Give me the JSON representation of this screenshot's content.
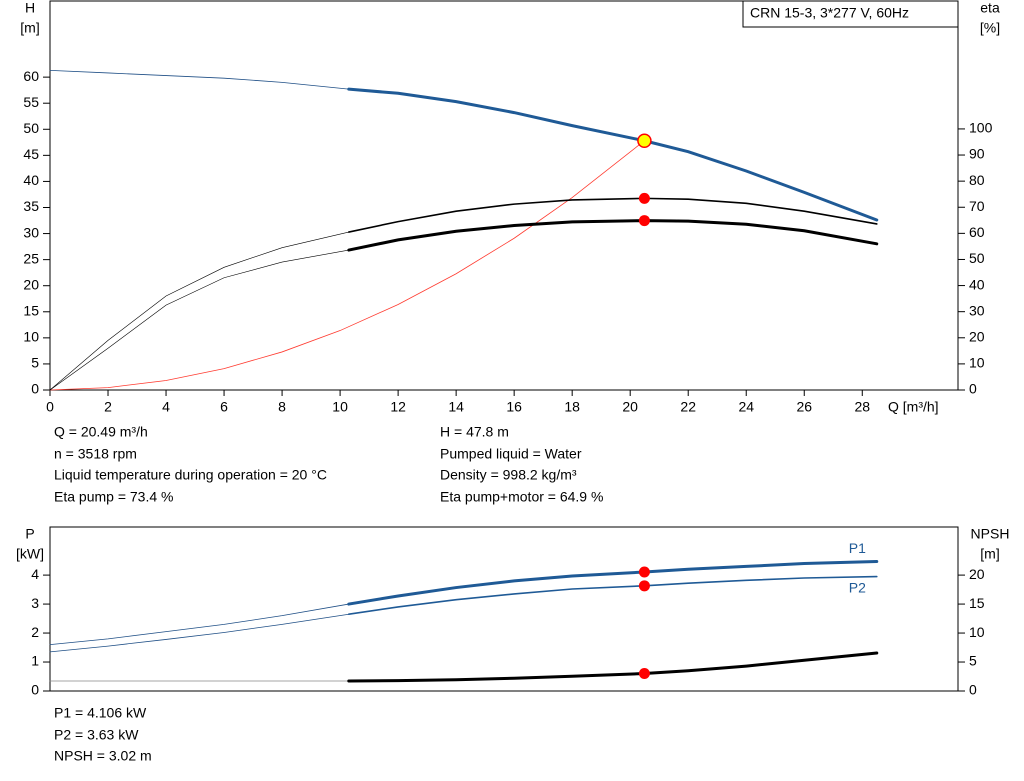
{
  "chart_data": [
    {
      "type": "line",
      "title": "CRN 15-3, 3*277 V, 60Hz",
      "xlabel": "Q [m³/h]",
      "ylabel": [
        "H",
        "[m]"
      ],
      "y2label": [
        "eta",
        "[%]"
      ],
      "xlim": [
        0,
        31.3
      ],
      "xticks": [
        0,
        2,
        4,
        6,
        8,
        10,
        12,
        14,
        16,
        18,
        20,
        22,
        24,
        26,
        28
      ],
      "ylim": [
        0,
        74.6
      ],
      "yticks": [
        0,
        5,
        10,
        15,
        20,
        25,
        30,
        35,
        40,
        45,
        50,
        55,
        60
      ],
      "y2lim": [
        0,
        149
      ],
      "y2ticks": [
        0,
        10,
        20,
        30,
        40,
        50,
        60,
        70,
        80,
        90,
        100
      ],
      "series": [
        {
          "color": "#1f4f86",
          "width": 0.8,
          "x": [
            0,
            2,
            4,
            6,
            8,
            10.3
          ],
          "values": [
            61.3,
            60.8,
            60.3,
            59.8,
            59.0,
            57.7
          ]
        },
        {
          "color": "#1f5a96",
          "width": 3,
          "x": [
            10.3,
            12,
            14,
            16,
            18,
            20.49,
            22,
            24,
            26,
            28.5
          ],
          "values": [
            57.7,
            56.9,
            55.3,
            53.2,
            50.7,
            47.8,
            45.7,
            42.0,
            37.9,
            32.6
          ]
        },
        {
          "color": "#ff3b30",
          "width": 0.8,
          "x": [
            0,
            2,
            4,
            6,
            8,
            10,
            12,
            14,
            16,
            18,
            20.49
          ],
          "values": [
            0,
            0.46,
            1.82,
            4.1,
            7.3,
            11.4,
            16.4,
            22.3,
            29.1,
            36.9,
            47.8
          ]
        },
        {
          "color": "#000000",
          "width": 0.6,
          "axis": "y2",
          "x": [
            0,
            2,
            4,
            6,
            8,
            10.3
          ],
          "values": [
            0,
            19,
            36,
            47,
            54.5,
            60.5
          ]
        },
        {
          "color": "#000000",
          "width": 1.6,
          "axis": "y2",
          "x": [
            10.3,
            12,
            14,
            16,
            18,
            20.49,
            22,
            24,
            26,
            28.5
          ],
          "values": [
            60.5,
            64.5,
            68.5,
            71.2,
            72.8,
            73.4,
            73.1,
            71.5,
            68.5,
            63.6
          ]
        },
        {
          "color": "#000000",
          "width": 0.6,
          "axis": "y2",
          "x": [
            0,
            2,
            4,
            6,
            8,
            10.3
          ],
          "values": [
            0,
            16,
            32.5,
            43,
            49,
            53.6
          ]
        },
        {
          "color": "#000000",
          "width": 3,
          "axis": "y2",
          "x": [
            10.3,
            12,
            14,
            16,
            18,
            20.49,
            22,
            24,
            26,
            28.5
          ],
          "values": [
            53.6,
            57.5,
            60.8,
            63,
            64.4,
            64.9,
            64.7,
            63.5,
            61,
            56
          ]
        }
      ],
      "points": [
        {
          "x": 20.49,
          "y": 47.8,
          "color": "#ffff00"
        },
        {
          "x": 20.49,
          "y": 73.4,
          "axis": "y2",
          "color": "#ff0000"
        },
        {
          "x": 20.49,
          "y": 64.9,
          "axis": "y2",
          "color": "#ff0000"
        }
      ],
      "annotations": [
        "Q = 20.49 m³/h",
        "n = 3518 rpm",
        "Liquid temperature during operation = 20 °C",
        "Eta pump = 73.4 %",
        "H = 47.8 m",
        "Pumped liquid = Water",
        "Density = 998.2 kg/m³",
        "Eta pump+motor = 64.9 %"
      ]
    },
    {
      "type": "line",
      "ylabel": [
        "P",
        "[kW]"
      ],
      "y2label": [
        "NPSH",
        "[m]"
      ],
      "xlim": [
        0,
        31.3
      ],
      "ylim": [
        0,
        5.66
      ],
      "yticks": [
        0,
        1,
        2,
        3,
        4
      ],
      "y2lim": [
        0,
        28.3
      ],
      "y2ticks": [
        0,
        5,
        10,
        15,
        20
      ],
      "series": [
        {
          "color": "#1f4f86",
          "width": 0.8,
          "x": [
            0,
            2,
            4,
            6,
            8,
            10.3
          ],
          "values": [
            1.6,
            1.8,
            2.05,
            2.3,
            2.6,
            3.0
          ]
        },
        {
          "name": "P1",
          "color": "#1f5a96",
          "width": 3,
          "x": [
            10.3,
            12,
            14,
            16,
            18,
            20.49,
            22,
            24,
            26,
            28.5
          ],
          "values": [
            3.0,
            3.28,
            3.57,
            3.8,
            3.97,
            4.106,
            4.2,
            4.3,
            4.4,
            4.47
          ]
        },
        {
          "color": "#1f4f86",
          "width": 0.8,
          "x": [
            0,
            2,
            4,
            6,
            8,
            10.3
          ],
          "values": [
            1.35,
            1.55,
            1.78,
            2.02,
            2.3,
            2.65
          ]
        },
        {
          "name": "P2",
          "color": "#1f5a96",
          "width": 1.6,
          "x": [
            10.3,
            12,
            14,
            16,
            18,
            20.49,
            22,
            24,
            26,
            28.5
          ],
          "values": [
            2.65,
            2.9,
            3.15,
            3.35,
            3.52,
            3.63,
            3.72,
            3.82,
            3.9,
            3.95
          ]
        },
        {
          "color": "#888888",
          "width": 0.8,
          "axis": "y2",
          "x": [
            0,
            10.3
          ],
          "values": [
            1.72,
            1.72
          ]
        },
        {
          "color": "#000000",
          "width": 3,
          "axis": "y2",
          "x": [
            10.3,
            12,
            14,
            16,
            18,
            20.49,
            22,
            24,
            26,
            28.5
          ],
          "values": [
            1.72,
            1.8,
            1.95,
            2.2,
            2.55,
            3.02,
            3.5,
            4.3,
            5.3,
            6.55
          ]
        }
      ],
      "points": [
        {
          "x": 20.49,
          "y": 4.106,
          "color": "#ff0000"
        },
        {
          "x": 20.49,
          "y": 3.63,
          "color": "#ff0000"
        },
        {
          "x": 20.49,
          "y": 3.02,
          "axis": "y2",
          "color": "#ff0000"
        }
      ],
      "annotations": [
        "P1 = 4.106 kW",
        "P2 = 3.63 kW",
        "NPSH = 3.02 m"
      ]
    }
  ]
}
